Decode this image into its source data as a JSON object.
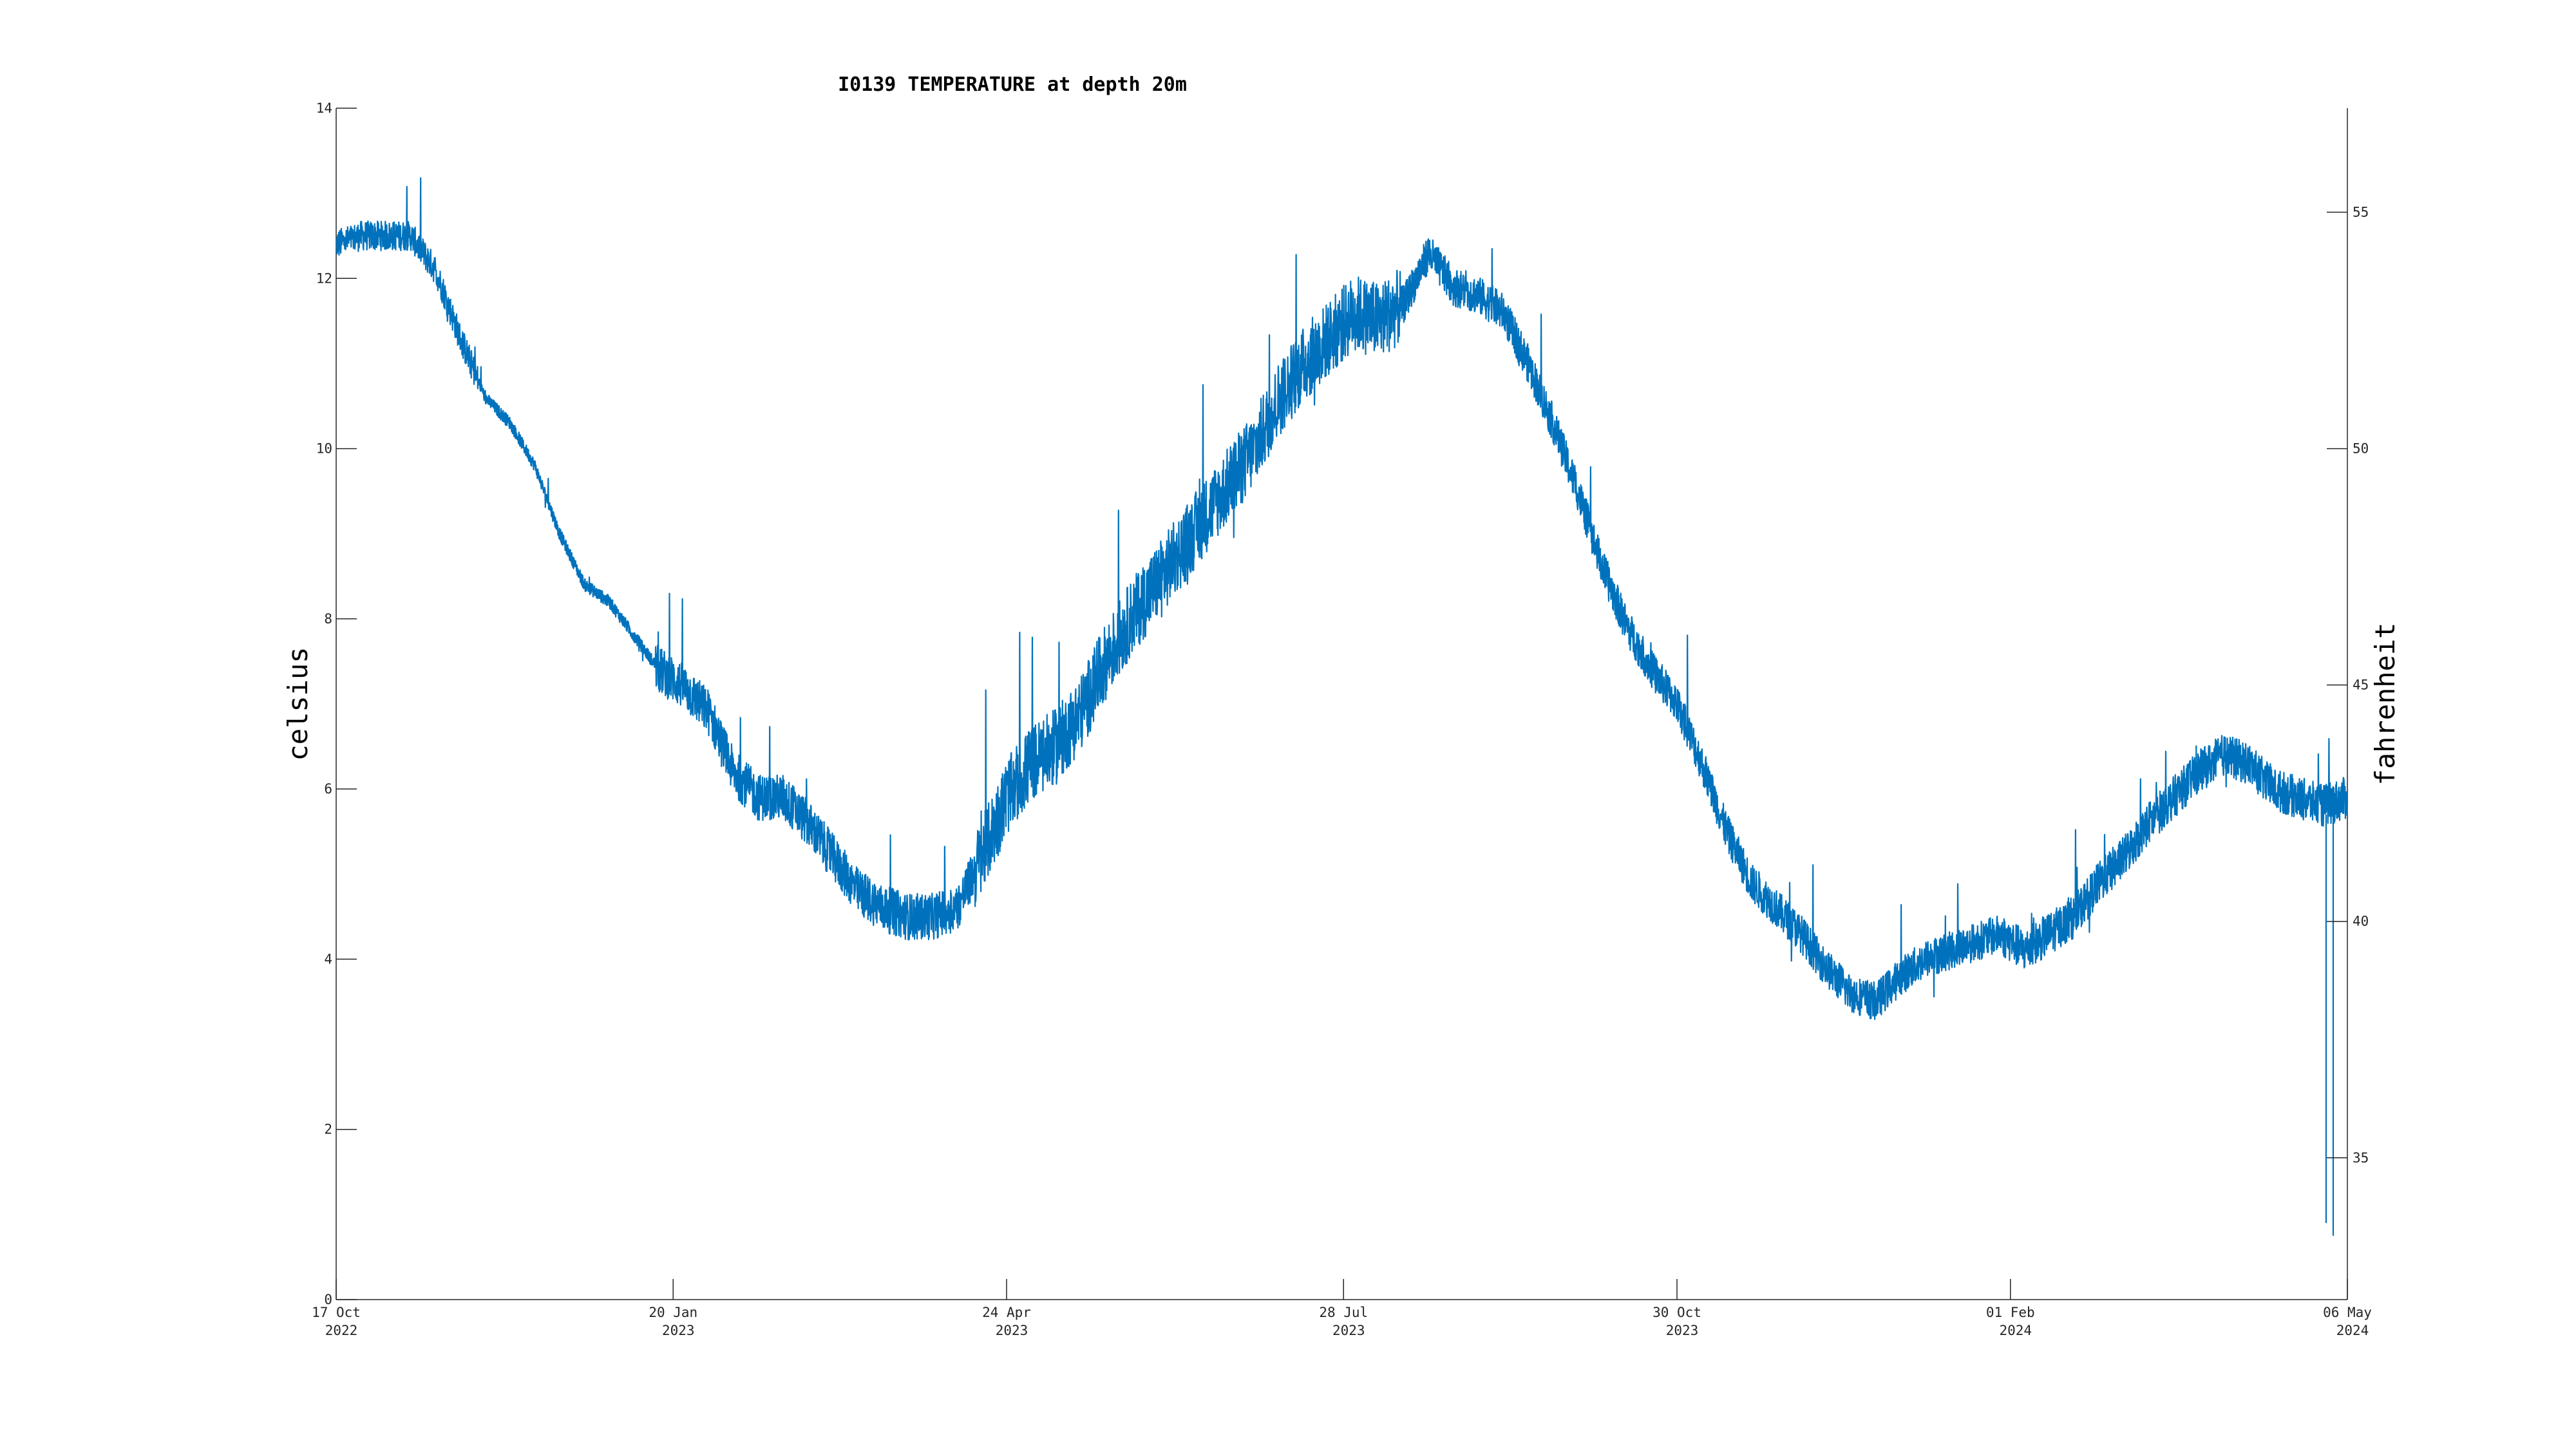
{
  "chart_data": {
    "type": "line",
    "title": "I0139 TEMPERATURE at depth 20m",
    "ylabel": "celsius",
    "ylabel_right": "fahrenheit",
    "xlabel": "",
    "ylim": [
      0,
      14
    ],
    "ylim_right_fahrenheit": [
      32,
      57.2
    ],
    "xlim": [
      "2022-10-17",
      "2024-05-06"
    ],
    "grid": false,
    "color": "#0072BD",
    "y_ticks": [
      "0",
      "2",
      "4",
      "6",
      "8",
      "10",
      "12",
      "14"
    ],
    "y_right_ticks": [
      "35",
      "40",
      "45",
      "50",
      "55"
    ],
    "x_ticks": [
      {
        "date": "2022-10-17",
        "line1": "17 Oct",
        "line2": "2022"
      },
      {
        "date": "2023-01-20",
        "line1": "20 Jan",
        "line2": "2023"
      },
      {
        "date": "2023-04-24",
        "line1": "24 Apr",
        "line2": "2023"
      },
      {
        "date": "2023-07-28",
        "line1": "28 Jul",
        "line2": "2023"
      },
      {
        "date": "2023-10-30",
        "line1": "30 Oct",
        "line2": "2023"
      },
      {
        "date": "2024-02-01",
        "line1": "01 Feb",
        "line2": "2024"
      },
      {
        "date": "2024-05-06",
        "line1": "06 May",
        "line2": "2024"
      }
    ],
    "series": [
      {
        "x": [
          "2022-10-17",
          "2022-10-24",
          "2022-10-31",
          "2022-11-07",
          "2022-11-14",
          "2022-11-21",
          "2022-11-28",
          "2022-12-05",
          "2022-12-12",
          "2022-12-19",
          "2022-12-26",
          "2023-01-02",
          "2023-01-09",
          "2023-01-16",
          "2023-01-23",
          "2023-01-30",
          "2023-02-06",
          "2023-02-13",
          "2023-02-20",
          "2023-02-27",
          "2023-03-06",
          "2023-03-13",
          "2023-03-20",
          "2023-03-27",
          "2023-04-03",
          "2023-04-10",
          "2023-04-17",
          "2023-04-24",
          "2023-05-01",
          "2023-05-08",
          "2023-05-15",
          "2023-05-22",
          "2023-05-29",
          "2023-06-05",
          "2023-06-12",
          "2023-06-19",
          "2023-06-26",
          "2023-07-03",
          "2023-07-10",
          "2023-07-17",
          "2023-07-24",
          "2023-07-31",
          "2023-08-07",
          "2023-08-14",
          "2023-08-21",
          "2023-08-28",
          "2023-09-04",
          "2023-09-11",
          "2023-09-18",
          "2023-09-25",
          "2023-10-02",
          "2023-10-09",
          "2023-10-16",
          "2023-10-23",
          "2023-10-30",
          "2023-11-06",
          "2023-11-13",
          "2023-11-20",
          "2023-11-27",
          "2023-12-04",
          "2023-12-11",
          "2023-12-18",
          "2023-12-25",
          "2024-01-01",
          "2024-01-08",
          "2024-01-15",
          "2024-01-22",
          "2024-01-29",
          "2024-02-05",
          "2024-02-12",
          "2024-02-19",
          "2024-02-26",
          "2024-03-04",
          "2024-03-11",
          "2024-03-18",
          "2024-03-25",
          "2024-04-01",
          "2024-04-08",
          "2024-04-15",
          "2024-04-22",
          "2024-04-29",
          "2024-05-06"
        ],
        "y": [
          12.4,
          12.5,
          12.5,
          12.5,
          12.1,
          11.3,
          10.6,
          10.3,
          9.8,
          9.0,
          8.4,
          8.2,
          7.8,
          7.4,
          7.2,
          6.9,
          6.2,
          5.9,
          5.9,
          5.6,
          5.2,
          4.8,
          4.6,
          4.5,
          4.5,
          4.6,
          5.2,
          5.9,
          6.3,
          6.5,
          6.9,
          7.5,
          8.0,
          8.4,
          8.8,
          9.2,
          9.6,
          10.0,
          10.6,
          11.0,
          11.3,
          11.6,
          11.5,
          11.7,
          12.3,
          11.9,
          11.8,
          11.6,
          11.0,
          10.3,
          9.5,
          8.6,
          7.9,
          7.4,
          7.0,
          6.3,
          5.5,
          4.9,
          4.6,
          4.3,
          3.9,
          3.6,
          3.5,
          3.8,
          4.0,
          4.1,
          4.2,
          4.3,
          4.1,
          4.3,
          4.5,
          4.9,
          5.2,
          5.6,
          5.9,
          6.2,
          6.4,
          6.3,
          6.0,
          5.9,
          5.8,
          5.9
        ]
      }
    ],
    "dropouts": [
      {
        "date": "2024-04-30",
        "y": 0.9
      },
      {
        "date": "2024-05-02",
        "y": 0.75
      }
    ]
  }
}
